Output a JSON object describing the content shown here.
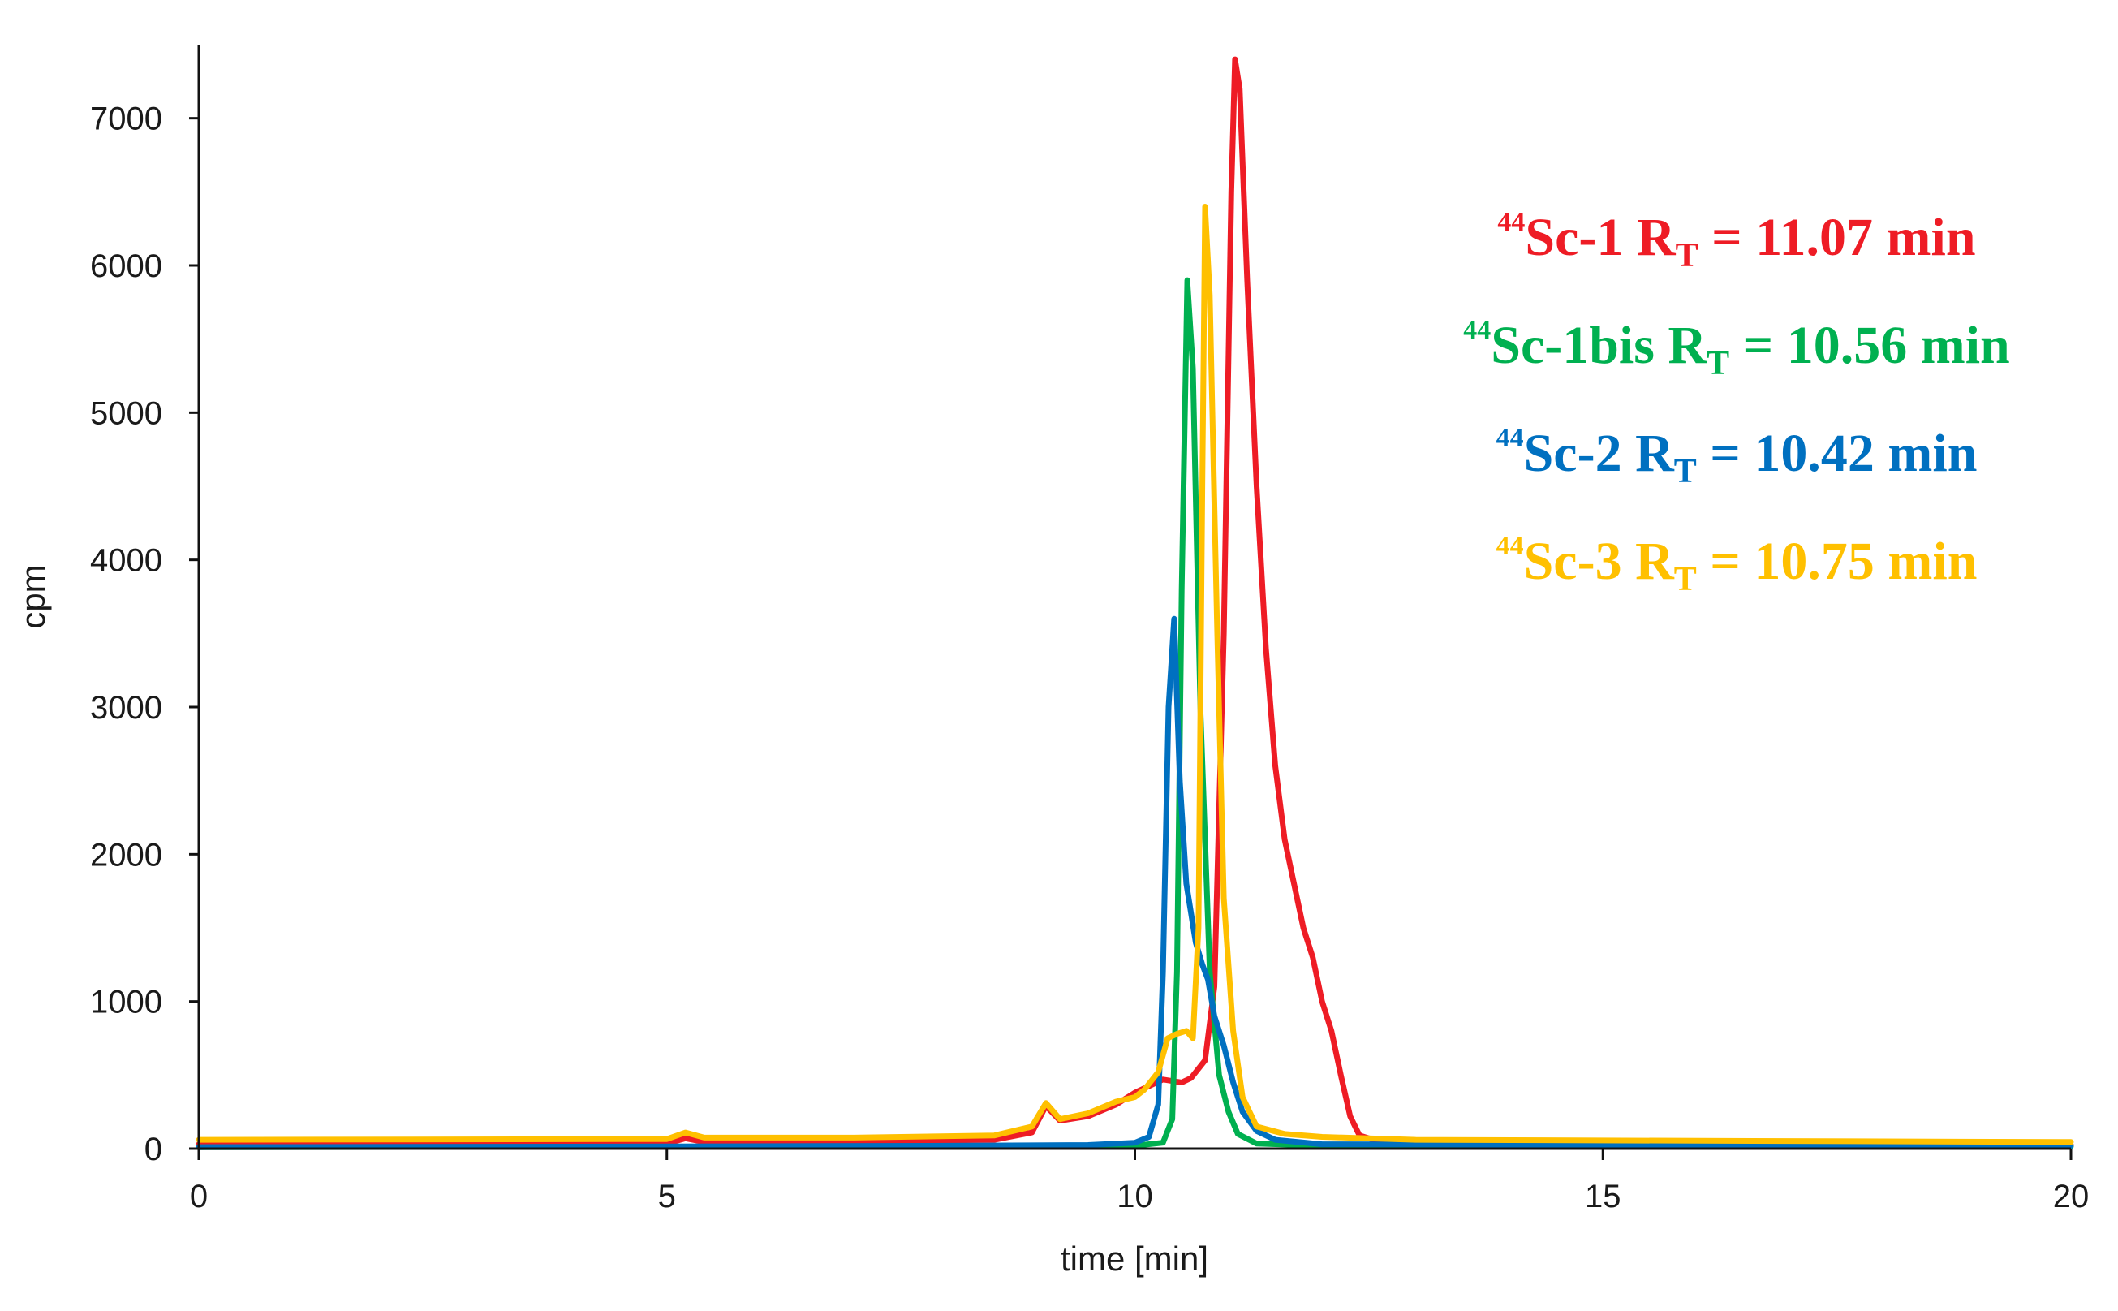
{
  "chart_data": {
    "type": "line",
    "xlabel": "time [min]",
    "ylabel": "cpm",
    "xlim": [
      0,
      20
    ],
    "ylim": [
      0,
      7500
    ],
    "x_ticks": [
      "0",
      "5",
      "10",
      "15",
      "20"
    ],
    "y_ticks": [
      "0",
      "1000",
      "2000",
      "3000",
      "4000",
      "5000",
      "6000",
      "7000"
    ],
    "grid": false,
    "legend_position": "top-right",
    "series": [
      {
        "name": "44Sc-1 RT = 11.07 min",
        "color": "#ee1c25",
        "points": [
          [
            0,
            30
          ],
          [
            5,
            35
          ],
          [
            5.2,
            70
          ],
          [
            5.4,
            45
          ],
          [
            7,
            50
          ],
          [
            8.5,
            60
          ],
          [
            8.9,
            110
          ],
          [
            9.05,
            290
          ],
          [
            9.2,
            190
          ],
          [
            9.5,
            220
          ],
          [
            9.8,
            300
          ],
          [
            10.0,
            380
          ],
          [
            10.3,
            470
          ],
          [
            10.5,
            450
          ],
          [
            10.6,
            480
          ],
          [
            10.75,
            600
          ],
          [
            10.85,
            1100
          ],
          [
            10.95,
            3500
          ],
          [
            11.03,
            6500
          ],
          [
            11.07,
            7400
          ],
          [
            11.12,
            7200
          ],
          [
            11.2,
            5900
          ],
          [
            11.3,
            4500
          ],
          [
            11.4,
            3400
          ],
          [
            11.5,
            2600
          ],
          [
            11.6,
            2100
          ],
          [
            11.7,
            1800
          ],
          [
            11.8,
            1500
          ],
          [
            11.9,
            1300
          ],
          [
            12.0,
            1000
          ],
          [
            12.1,
            800
          ],
          [
            12.2,
            500
          ],
          [
            12.3,
            220
          ],
          [
            12.4,
            90
          ],
          [
            12.6,
            50
          ],
          [
            14,
            35
          ],
          [
            20,
            25
          ]
        ]
      },
      {
        "name": "44Sc-1bis RT = 10.56 min",
        "color": "#00b050",
        "points": [
          [
            0,
            10
          ],
          [
            5,
            12
          ],
          [
            8,
            15
          ],
          [
            10,
            20
          ],
          [
            10.3,
            40
          ],
          [
            10.4,
            200
          ],
          [
            10.45,
            1200
          ],
          [
            10.5,
            3800
          ],
          [
            10.56,
            5900
          ],
          [
            10.62,
            5300
          ],
          [
            10.7,
            3000
          ],
          [
            10.8,
            1200
          ],
          [
            10.9,
            500
          ],
          [
            11.0,
            250
          ],
          [
            11.1,
            100
          ],
          [
            11.3,
            35
          ],
          [
            12,
            20
          ],
          [
            20,
            15
          ]
        ]
      },
      {
        "name": "44Sc-2 RT = 10.42 min",
        "color": "#0070c0",
        "points": [
          [
            0,
            10
          ],
          [
            5,
            15
          ],
          [
            8,
            20
          ],
          [
            9.5,
            25
          ],
          [
            10.0,
            40
          ],
          [
            10.15,
            80
          ],
          [
            10.25,
            300
          ],
          [
            10.3,
            1200
          ],
          [
            10.36,
            3000
          ],
          [
            10.42,
            3600
          ],
          [
            10.48,
            2500
          ],
          [
            10.55,
            1800
          ],
          [
            10.65,
            1400
          ],
          [
            10.72,
            1250
          ],
          [
            10.78,
            1150
          ],
          [
            10.85,
            900
          ],
          [
            10.95,
            700
          ],
          [
            11.05,
            450
          ],
          [
            11.15,
            250
          ],
          [
            11.3,
            120
          ],
          [
            11.5,
            60
          ],
          [
            12,
            30
          ],
          [
            20,
            20
          ]
        ]
      },
      {
        "name": "44Sc-3 RT = 10.75 min",
        "color": "#ffc000",
        "points": [
          [
            0,
            60
          ],
          [
            5,
            65
          ],
          [
            5.2,
            110
          ],
          [
            5.4,
            75
          ],
          [
            7,
            75
          ],
          [
            8.5,
            90
          ],
          [
            8.9,
            150
          ],
          [
            9.05,
            310
          ],
          [
            9.2,
            200
          ],
          [
            9.5,
            240
          ],
          [
            9.8,
            320
          ],
          [
            10.0,
            350
          ],
          [
            10.1,
            400
          ],
          [
            10.25,
            520
          ],
          [
            10.35,
            750
          ],
          [
            10.45,
            780
          ],
          [
            10.55,
            800
          ],
          [
            10.62,
            750
          ],
          [
            10.68,
            1500
          ],
          [
            10.72,
            4500
          ],
          [
            10.75,
            6400
          ],
          [
            10.8,
            5800
          ],
          [
            10.88,
            3500
          ],
          [
            10.95,
            1700
          ],
          [
            11.05,
            800
          ],
          [
            11.15,
            350
          ],
          [
            11.3,
            150
          ],
          [
            11.6,
            100
          ],
          [
            12,
            80
          ],
          [
            13,
            60
          ],
          [
            20,
            45
          ]
        ]
      }
    ]
  },
  "legend": [
    {
      "iso": "44",
      "label": "Sc-1 R",
      "sub": "T",
      "rest": " = 11.07 min",
      "color": "#ee1c25"
    },
    {
      "iso": "44",
      "label": "Sc-1bis R",
      "sub": "T",
      "rest": " = 10.56 min",
      "color": "#00b050"
    },
    {
      "iso": "44",
      "label": "Sc-2 R",
      "sub": "T",
      "rest": " = 10.42 min",
      "color": "#0070c0"
    },
    {
      "iso": "44",
      "label": "Sc-3 R",
      "sub": "T",
      "rest": " = 10.75 min",
      "color": "#ffc000"
    }
  ]
}
